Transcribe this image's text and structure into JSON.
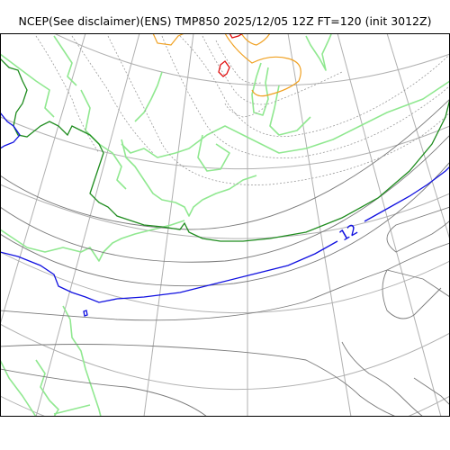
{
  "figure": {
    "title": "NCEP(See disclaimer)(ENS) TMP850 2025/12/05 12Z FT=120 (init 3012Z)"
  },
  "map": {
    "contour_label": "12",
    "colors": {
      "grid": "#b0b0b0",
      "coastline": "#90e890",
      "contour_gray": "#7a7a7a",
      "contour_dashed": "#9a9a9a",
      "contour_green": "#1e8c1e",
      "contour_blue": "#1010e0",
      "contour_orange": "#f0a020",
      "contour_red": "#e01010"
    }
  }
}
